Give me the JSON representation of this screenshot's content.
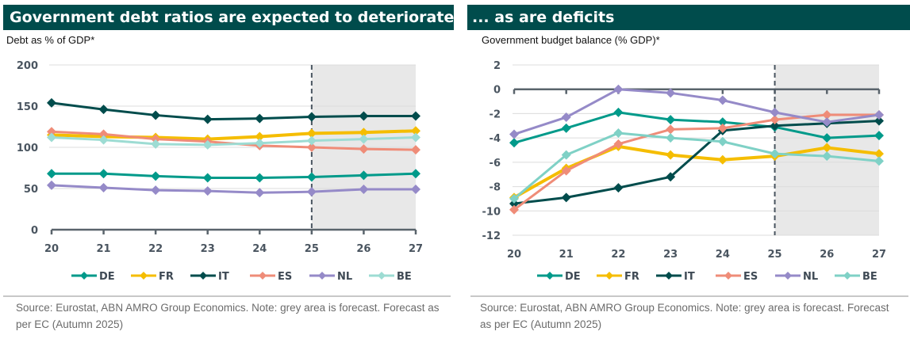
{
  "panels": [
    {
      "title": "Government debt ratios are expected to deteriorate...",
      "subtitle": "Debt as % of GDP*",
      "source": "Source: Eurostat, ABN AMRO Group Economics. Note: grey area is forecast. Forecast as per EC (Autumn 2025)"
    },
    {
      "title": "... as are deficits",
      "subtitle": "Government budget balance (% GDP)*",
      "source": "Source: Eurostat, ABN AMRO Group Economics. Note: grey area is forecast. Forecast as per EC (Autumn 2025)"
    }
  ],
  "chart_data": [
    {
      "type": "line",
      "title": "Government debt ratios are expected to deteriorate...",
      "ylabel": "Debt as % of GDP*",
      "xlabel": "",
      "x": [
        "20",
        "21",
        "22",
        "23",
        "24",
        "25",
        "26",
        "27"
      ],
      "ylim": [
        0,
        200
      ],
      "yticks": [
        0,
        50,
        100,
        150,
        200
      ],
      "grid": true,
      "forecast_from": "25",
      "legend": "bottom",
      "series": [
        {
          "name": "DE",
          "color": "#009a8a",
          "values": [
            68,
            68,
            65,
            63,
            63,
            64,
            66,
            68
          ]
        },
        {
          "name": "FR",
          "color": "#f5bd00",
          "values": [
            115,
            113,
            112,
            110,
            113,
            117,
            118,
            120
          ]
        },
        {
          "name": "IT",
          "color": "#004c4c",
          "values": [
            154,
            146,
            139,
            134,
            135,
            137,
            138,
            138
          ]
        },
        {
          "name": "ES",
          "color": "#ef8c78",
          "values": [
            119,
            116,
            110,
            107,
            102,
            100,
            98,
            97
          ]
        },
        {
          "name": "NL",
          "color": "#958ac8",
          "values": [
            54,
            51,
            48,
            47,
            45,
            46,
            49,
            49
          ]
        },
        {
          "name": "BE",
          "color": "#9ddcd3",
          "values": [
            112,
            109,
            104,
            103,
            105,
            108,
            110,
            112
          ]
        }
      ]
    },
    {
      "type": "line",
      "title": "... as are deficits",
      "ylabel": "Government budget balance (% GDP)*",
      "xlabel": "",
      "x": [
        "20",
        "21",
        "22",
        "23",
        "24",
        "25",
        "26",
        "27"
      ],
      "ylim": [
        -12,
        2
      ],
      "yticks": [
        -12,
        -10,
        -8,
        -6,
        -4,
        -2,
        0,
        2
      ],
      "grid": true,
      "forecast_from": "25",
      "legend": "bottom",
      "series": [
        {
          "name": "DE",
          "color": "#009a8a",
          "values": [
            -4.4,
            -3.2,
            -1.9,
            -2.5,
            -2.7,
            -3.1,
            -4.0,
            -3.8
          ]
        },
        {
          "name": "FR",
          "color": "#f5bd00",
          "values": [
            -8.9,
            -6.5,
            -4.7,
            -5.4,
            -5.8,
            -5.5,
            -4.8,
            -5.3
          ]
        },
        {
          "name": "IT",
          "color": "#004c4c",
          "values": [
            -9.4,
            -8.9,
            -8.1,
            -7.2,
            -3.4,
            -3.0,
            -2.8,
            -2.6
          ]
        },
        {
          "name": "ES",
          "color": "#ef8c78",
          "values": [
            -9.9,
            -6.7,
            -4.5,
            -3.3,
            -3.2,
            -2.5,
            -2.1,
            -2.1
          ]
        },
        {
          "name": "NL",
          "color": "#958ac8",
          "values": [
            -3.7,
            -2.3,
            0.0,
            -0.3,
            -0.9,
            -1.9,
            -2.7,
            -2.1
          ]
        },
        {
          "name": "BE",
          "color": "#7fd1c6",
          "values": [
            -9.0,
            -5.4,
            -3.6,
            -4.0,
            -4.3,
            -5.3,
            -5.5,
            -5.9
          ]
        }
      ]
    }
  ]
}
